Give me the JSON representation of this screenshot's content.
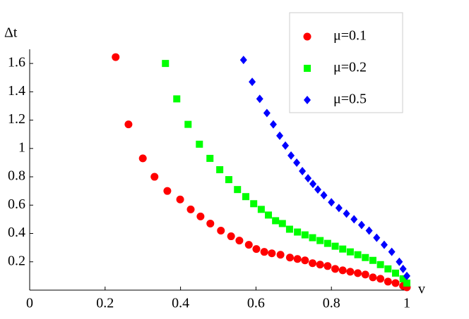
{
  "chart_data": {
    "type": "scatter",
    "xlabel": "v",
    "ylabel": "Δt",
    "xlim": [
      0,
      1
    ],
    "ylim": [
      0,
      1.7
    ],
    "xticks": [
      0,
      0.2,
      0.4,
      0.6,
      0.8,
      1
    ],
    "yticks": [
      0.2,
      0.4,
      0.6,
      0.8,
      1,
      1.2,
      1.4,
      1.6
    ],
    "legend": "upper right",
    "series": [
      {
        "name": "μ=0.1",
        "color": "#ff0000",
        "marker": "circle",
        "x": [
          0.228,
          0.262,
          0.3,
          0.331,
          0.365,
          0.399,
          0.427,
          0.453,
          0.479,
          0.507,
          0.534,
          0.556,
          0.581,
          0.601,
          0.622,
          0.642,
          0.665,
          0.69,
          0.71,
          0.73,
          0.75,
          0.77,
          0.79,
          0.81,
          0.83,
          0.85,
          0.87,
          0.89,
          0.91,
          0.93,
          0.95,
          0.97,
          0.99,
          1.0
        ],
        "values": [
          1.645,
          1.17,
          0.93,
          0.8,
          0.7,
          0.64,
          0.57,
          0.52,
          0.47,
          0.42,
          0.38,
          0.35,
          0.32,
          0.29,
          0.27,
          0.26,
          0.25,
          0.23,
          0.22,
          0.21,
          0.19,
          0.18,
          0.17,
          0.15,
          0.14,
          0.13,
          0.12,
          0.11,
          0.09,
          0.08,
          0.06,
          0.05,
          0.03,
          0.02
        ]
      },
      {
        "name": "μ=0.2",
        "color": "#00ff00",
        "marker": "square",
        "x": [
          0.36,
          0.39,
          0.42,
          0.45,
          0.478,
          0.504,
          0.528,
          0.551,
          0.573,
          0.594,
          0.614,
          0.633,
          0.652,
          0.67,
          0.689,
          0.71,
          0.73,
          0.75,
          0.77,
          0.79,
          0.81,
          0.83,
          0.85,
          0.87,
          0.89,
          0.91,
          0.93,
          0.95,
          0.97,
          0.99,
          1.0
        ],
        "values": [
          1.6,
          1.35,
          1.17,
          1.03,
          0.93,
          0.85,
          0.78,
          0.71,
          0.66,
          0.61,
          0.57,
          0.53,
          0.49,
          0.47,
          0.43,
          0.41,
          0.39,
          0.37,
          0.35,
          0.33,
          0.31,
          0.29,
          0.27,
          0.25,
          0.23,
          0.21,
          0.18,
          0.15,
          0.12,
          0.08,
          0.05
        ]
      },
      {
        "name": "μ=0.5",
        "color": "#0000ff",
        "marker": "diamond",
        "x": [
          0.567,
          0.59,
          0.61,
          0.629,
          0.646,
          0.663,
          0.678,
          0.693,
          0.708,
          0.723,
          0.738,
          0.751,
          0.764,
          0.78,
          0.8,
          0.82,
          0.84,
          0.86,
          0.88,
          0.9,
          0.92,
          0.94,
          0.96,
          0.98,
          0.99,
          1.0
        ],
        "values": [
          1.625,
          1.47,
          1.35,
          1.25,
          1.17,
          1.09,
          1.02,
          0.95,
          0.9,
          0.84,
          0.79,
          0.75,
          0.71,
          0.67,
          0.62,
          0.58,
          0.54,
          0.5,
          0.46,
          0.42,
          0.37,
          0.32,
          0.27,
          0.2,
          0.15,
          0.1
        ]
      }
    ]
  }
}
